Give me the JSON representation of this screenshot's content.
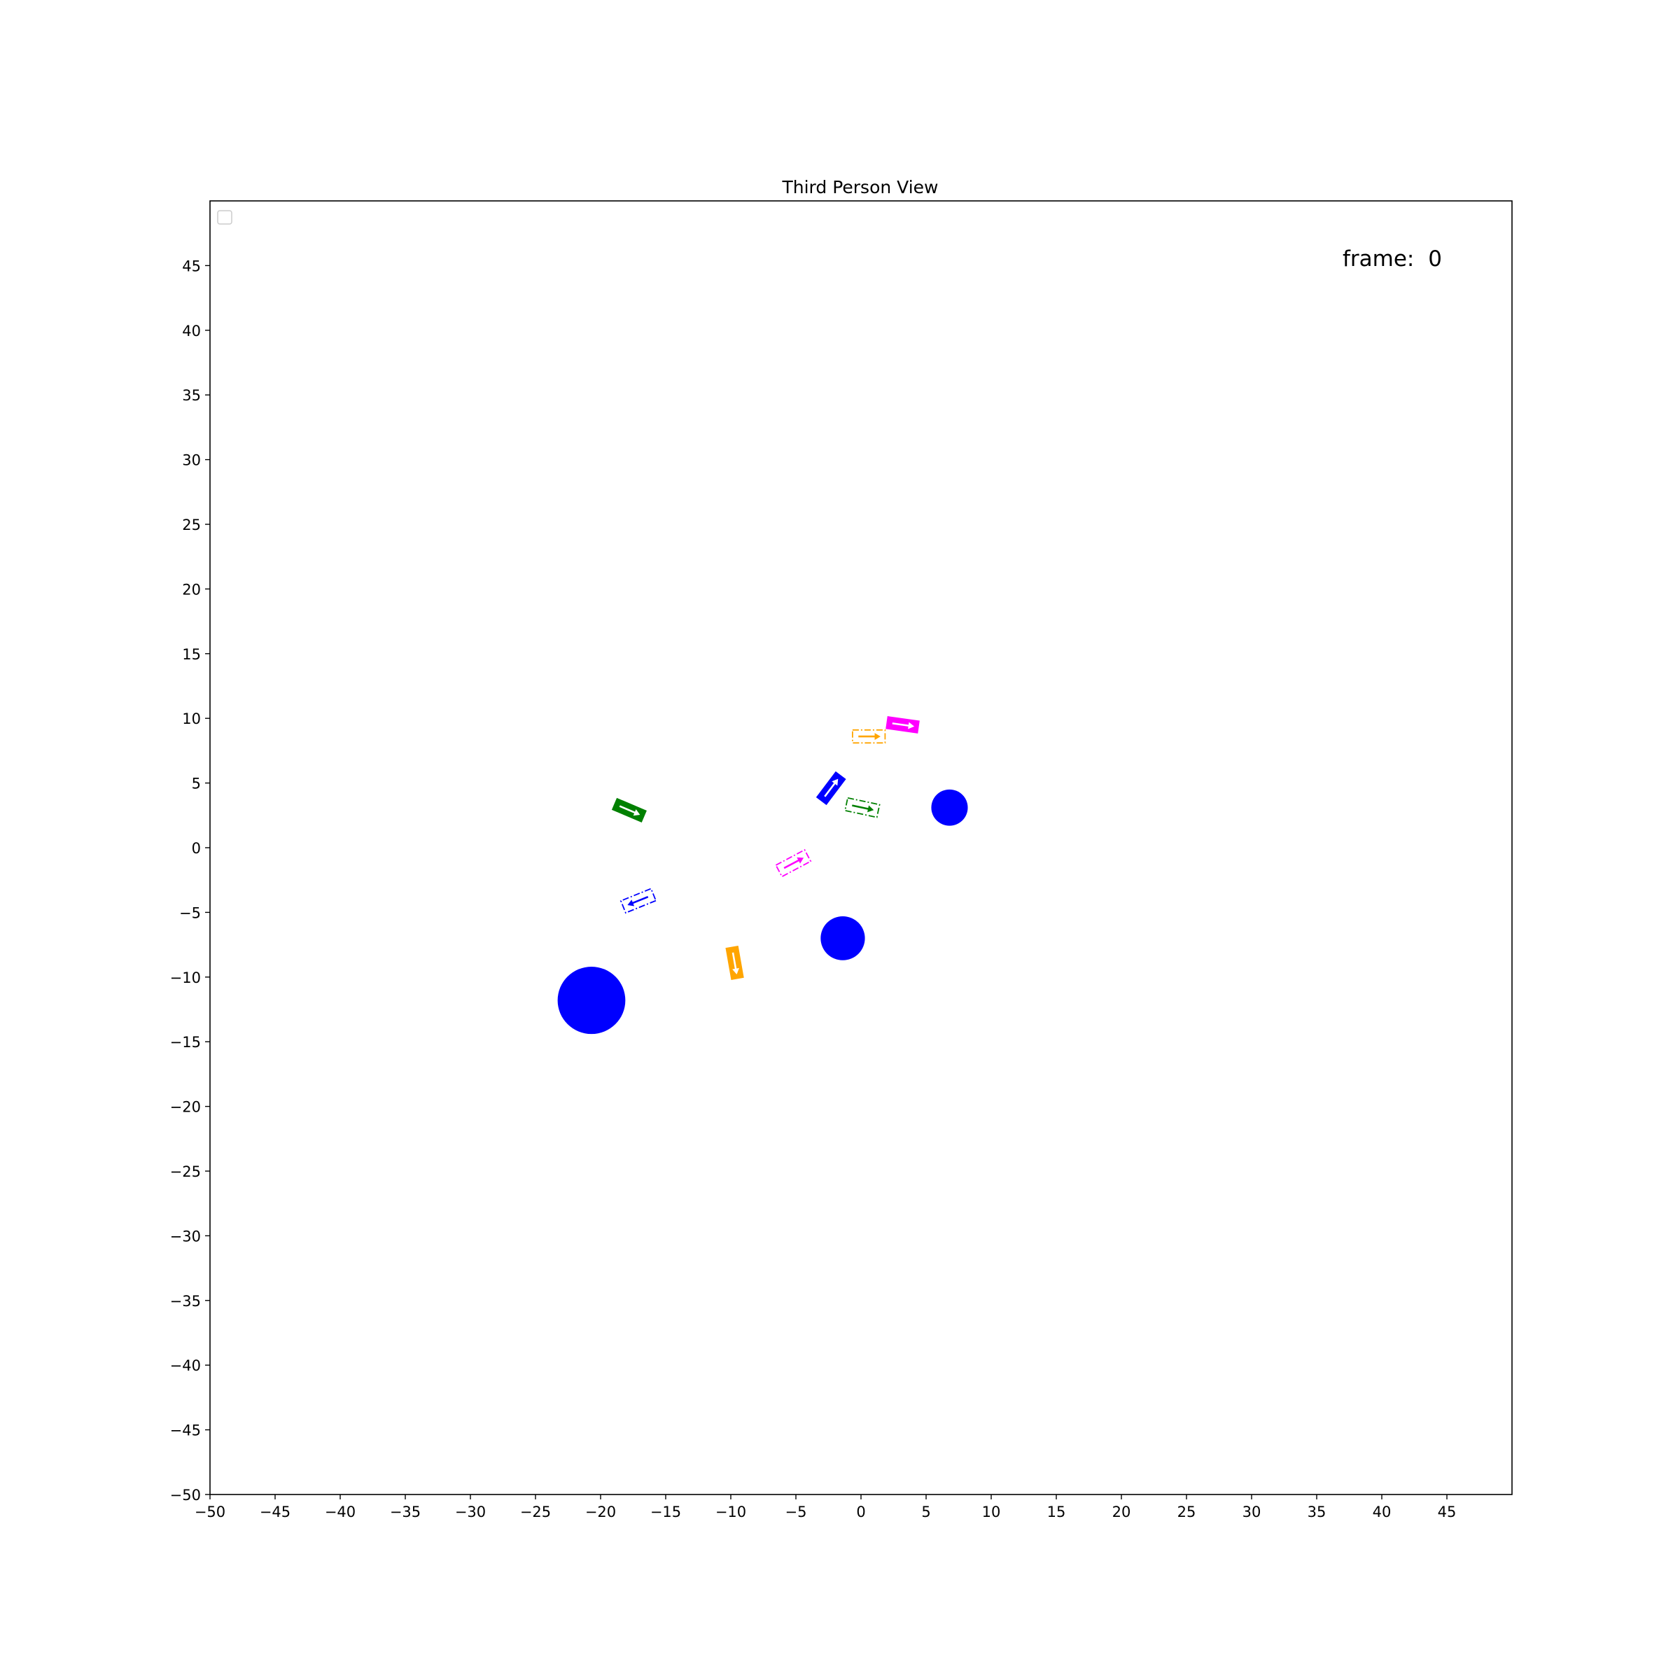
{
  "chart_data": {
    "type": "scatter",
    "title": "Third Person View",
    "annotation": {
      "label": "frame:",
      "value": "0"
    },
    "xlim": [
      -50,
      50
    ],
    "ylim": [
      -50,
      50
    ],
    "xticks": [
      "−50",
      "−45",
      "−40",
      "−35",
      "−30",
      "−25",
      "−20",
      "−15",
      "−10",
      "−5",
      "0",
      "5",
      "10",
      "15",
      "20",
      "25",
      "30",
      "35",
      "40",
      "45"
    ],
    "yticks": [
      "−50",
      "−45",
      "−40",
      "−35",
      "−30",
      "−25",
      "−20",
      "−15",
      "−10",
      "−5",
      "0",
      "5",
      "10",
      "15",
      "20",
      "25",
      "30",
      "35",
      "40",
      "45"
    ],
    "grid": false,
    "legend": "top-left (empty)",
    "obstacles": [
      {
        "x": -20.7,
        "y": -11.8,
        "r": 2.6,
        "color": "#0000ff"
      },
      {
        "x": -1.4,
        "y": -7.0,
        "r": 1.7,
        "color": "#0000ff"
      },
      {
        "x": 6.8,
        "y": 3.1,
        "r": 1.4,
        "color": "#0000ff"
      }
    ],
    "vehicles": [
      {
        "x": 3.2,
        "y": 9.5,
        "heading": -8,
        "color": "#ff00ff",
        "style": "solid"
      },
      {
        "x": -17.8,
        "y": 2.9,
        "heading": -23,
        "color": "#008000",
        "style": "solid"
      },
      {
        "x": -2.3,
        "y": 4.6,
        "heading": 53,
        "color": "#0000ff",
        "style": "solid"
      },
      {
        "x": -9.7,
        "y": -8.9,
        "heading": -80,
        "color": "#ffa500",
        "style": "solid"
      },
      {
        "x": 0.6,
        "y": 8.6,
        "heading": 0,
        "color": "#ffa500",
        "style": "dashdot"
      },
      {
        "x": 0.1,
        "y": 3.1,
        "heading": -12,
        "color": "#008000",
        "style": "dashdot"
      },
      {
        "x": -5.2,
        "y": -1.2,
        "heading": 28,
        "color": "#ff00ff",
        "style": "dashdot"
      },
      {
        "x": -17.1,
        "y": -4.1,
        "heading": 202,
        "color": "#0000ff",
        "style": "dashdot"
      }
    ]
  }
}
